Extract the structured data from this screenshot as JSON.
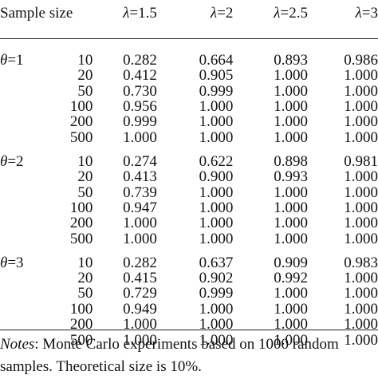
{
  "table": {
    "header": {
      "sample_size": "Sample size",
      "lambda_symbol": "λ",
      "lambda_values": [
        "=1.5",
        "=2",
        "=2.5",
        "=3"
      ]
    },
    "groups": [
      {
        "theta_symbol": "θ",
        "theta_label": "=1",
        "rows": [
          {
            "n": "10",
            "values": [
              "0.282",
              "0.664",
              "0.893",
              "0.986"
            ]
          },
          {
            "n": "20",
            "values": [
              "0.412",
              "0.905",
              "1.000",
              "1.000"
            ]
          },
          {
            "n": "50",
            "values": [
              "0.730",
              "0.999",
              "1.000",
              "1.000"
            ]
          },
          {
            "n": "100",
            "values": [
              "0.956",
              "1.000",
              "1.000",
              "1.000"
            ]
          },
          {
            "n": "200",
            "values": [
              "0.999",
              "1.000",
              "1.000",
              "1.000"
            ]
          },
          {
            "n": "500",
            "values": [
              "1.000",
              "1.000",
              "1.000",
              "1.000"
            ]
          }
        ]
      },
      {
        "theta_symbol": "θ",
        "theta_label": "=2",
        "rows": [
          {
            "n": "10",
            "values": [
              "0.274",
              "0.622",
              "0.898",
              "0.981"
            ]
          },
          {
            "n": "20",
            "values": [
              "0.413",
              "0.900",
              "0.993",
              "1.000"
            ]
          },
          {
            "n": "50",
            "values": [
              "0.739",
              "1.000",
              "1.000",
              "1.000"
            ]
          },
          {
            "n": "100",
            "values": [
              "0.947",
              "1.000",
              "1.000",
              "1.000"
            ]
          },
          {
            "n": "200",
            "values": [
              "1.000",
              "1.000",
              "1.000",
              "1.000"
            ]
          },
          {
            "n": "500",
            "values": [
              "1.000",
              "1.000",
              "1.000",
              "1.000"
            ]
          }
        ]
      },
      {
        "theta_symbol": "θ",
        "theta_label": "=3",
        "rows": [
          {
            "n": "10",
            "values": [
              "0.282",
              "0.637",
              "0.909",
              "0.983"
            ]
          },
          {
            "n": "20",
            "values": [
              "0.415",
              "0.902",
              "0.992",
              "1.000"
            ]
          },
          {
            "n": "50",
            "values": [
              "0.729",
              "0.999",
              "1.000",
              "1.000"
            ]
          },
          {
            "n": "100",
            "values": [
              "0.949",
              "1.000",
              "1.000",
              "1.000"
            ]
          },
          {
            "n": "200",
            "values": [
              "1.000",
              "1.000",
              "1.000",
              "1.000"
            ]
          },
          {
            "n": "500",
            "values": [
              "1.000",
              "1.000",
              "1.000",
              "1.000"
            ]
          }
        ]
      }
    ]
  },
  "notes": {
    "label": "Notes",
    "line1": ": Monte Carlo experiments based on 1000 random",
    "line2": "samples. Theoretical size is 10%."
  }
}
